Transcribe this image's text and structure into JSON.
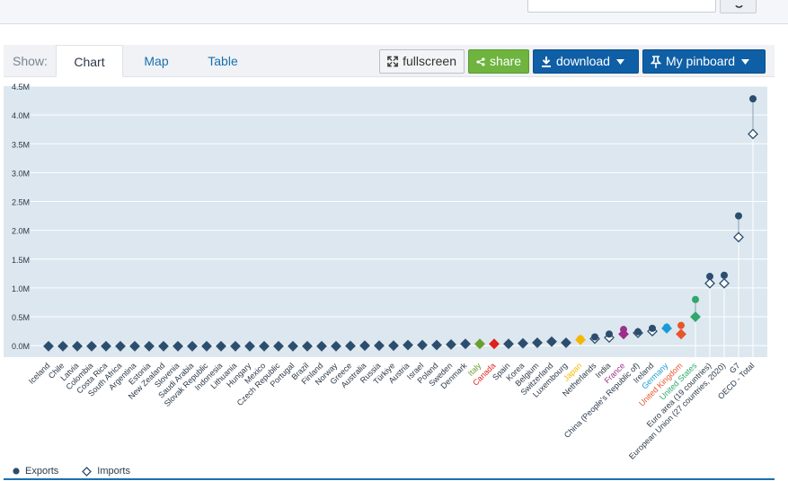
{
  "toolbar": {
    "show_label": "Show:",
    "tabs": [
      "Chart",
      "Map",
      "Table"
    ],
    "fullscreen_label": "fullscreen",
    "share_label": "share",
    "download_label": "download",
    "pinboard_label": "My pinboard"
  },
  "icons": {
    "search": "search-icon",
    "fullscreen": "expand-icon",
    "share": "share-icon",
    "download": "download-icon",
    "pin": "pin-icon",
    "caret": "caret-down-icon"
  },
  "colors": {
    "plot_bg": "#dce7ef",
    "default_marker": "#2c4d6d",
    "accent_blue": "#0f5fa6",
    "share_green": "#6eb43f"
  },
  "legend": {
    "exports": "Exports",
    "imports": "Imports"
  },
  "chart_data": {
    "type": "scatter",
    "yticks": [
      "4.5M",
      "4.0M",
      "3.5M",
      "3.0M",
      "2.5M",
      "2.0M",
      "1.5M",
      "1.0M",
      "0.5M",
      "0.0M"
    ],
    "ylim": [
      -0.2,
      4.5
    ],
    "categories": [
      "Iceland",
      "Chile",
      "Latvia",
      "Colombia",
      "Costa Rica",
      "South Africa",
      "Argentina",
      "Estonia",
      "New Zealand",
      "Slovenia",
      "Saudi Arabia",
      "Slovak Republic",
      "Indonesia",
      "Lithuania",
      "Hungary",
      "Mexico",
      "Czech Republic",
      "Portugal",
      "Brazil",
      "Finland",
      "Norway",
      "Greece",
      "Australia",
      "Russia",
      "Türkiye",
      "Austria",
      "Israel",
      "Poland",
      "Sweden",
      "Denmark",
      "Italy",
      "Canada",
      "Spain",
      "Korea",
      "Belgium",
      "Switzerland",
      "Luxembourg",
      "Japan",
      "Netherlands",
      "India",
      "France",
      "China (People's Republic of)",
      "Ireland",
      "Germany",
      "United Kingdom",
      "United States",
      "Euro area (19 countries)",
      "European Union (27 countries, 2020)",
      "G7",
      "OECD - Total"
    ],
    "highlight_colors": {
      "Italy": "#6a9f2e",
      "Canada": "#e0201c",
      "Japan": "#f5b800",
      "France": "#9c2f8a",
      "Germany": "#1a9ad6",
      "United Kingdom": "#e8552b",
      "United States": "#2fa86a"
    },
    "series": [
      {
        "name": "Exports",
        "marker": "circle",
        "values": [
          -0.01,
          -0.01,
          -0.01,
          -0.01,
          -0.01,
          -0.01,
          -0.01,
          -0.01,
          -0.01,
          -0.01,
          -0.01,
          -0.01,
          -0.01,
          -0.01,
          -0.01,
          -0.01,
          -0.01,
          -0.01,
          -0.01,
          -0.01,
          -0.01,
          -0.005,
          0.0,
          0.0,
          0.0,
          0.01,
          0.01,
          0.01,
          0.02,
          0.03,
          0.03,
          0.03,
          0.03,
          0.04,
          0.05,
          0.07,
          0.05,
          0.12,
          0.15,
          0.2,
          0.28,
          0.24,
          0.3,
          0.32,
          0.35,
          0.8,
          1.2,
          1.22,
          2.25,
          4.28
        ]
      },
      {
        "name": "Imports",
        "marker": "diamond",
        "values": [
          -0.01,
          -0.01,
          -0.01,
          -0.01,
          -0.01,
          -0.01,
          -0.01,
          -0.01,
          -0.01,
          -0.01,
          -0.01,
          -0.01,
          -0.01,
          -0.01,
          -0.01,
          -0.01,
          -0.01,
          -0.01,
          -0.01,
          -0.01,
          -0.01,
          -0.005,
          0.0,
          0.0,
          0.0,
          0.01,
          0.01,
          0.01,
          0.02,
          0.03,
          0.03,
          0.03,
          0.03,
          0.04,
          0.05,
          0.07,
          0.05,
          0.1,
          0.12,
          0.14,
          0.2,
          0.22,
          0.25,
          0.3,
          0.2,
          0.5,
          1.08,
          1.08,
          1.88,
          3.67
        ]
      }
    ]
  }
}
